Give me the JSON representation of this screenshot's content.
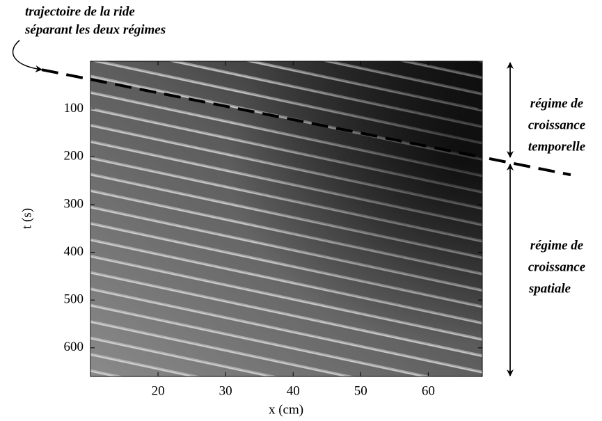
{
  "chart_data": {
    "type": "image",
    "xlabel": "x (cm)",
    "ylabel": "t (s)",
    "xlim": [
      10,
      68
    ],
    "ylim": [
      0,
      660
    ],
    "y_inverted": true,
    "xticks": [
      20,
      30,
      40,
      50,
      60
    ],
    "yticks": [
      100,
      200,
      300,
      400,
      500,
      600
    ],
    "ride_trajectory": {
      "x": [
        10,
        68
      ],
      "t": [
        38,
        201
      ],
      "color": "#000000"
    },
    "annotations": {
      "trajectory": [
        "trajectoire de la ride",
        "séparant les deux régimes"
      ],
      "temporal": [
        "régime de",
        "croissance",
        "temporelle"
      ],
      "spatial": [
        "régime de",
        "croissance",
        "spatiale"
      ]
    }
  }
}
